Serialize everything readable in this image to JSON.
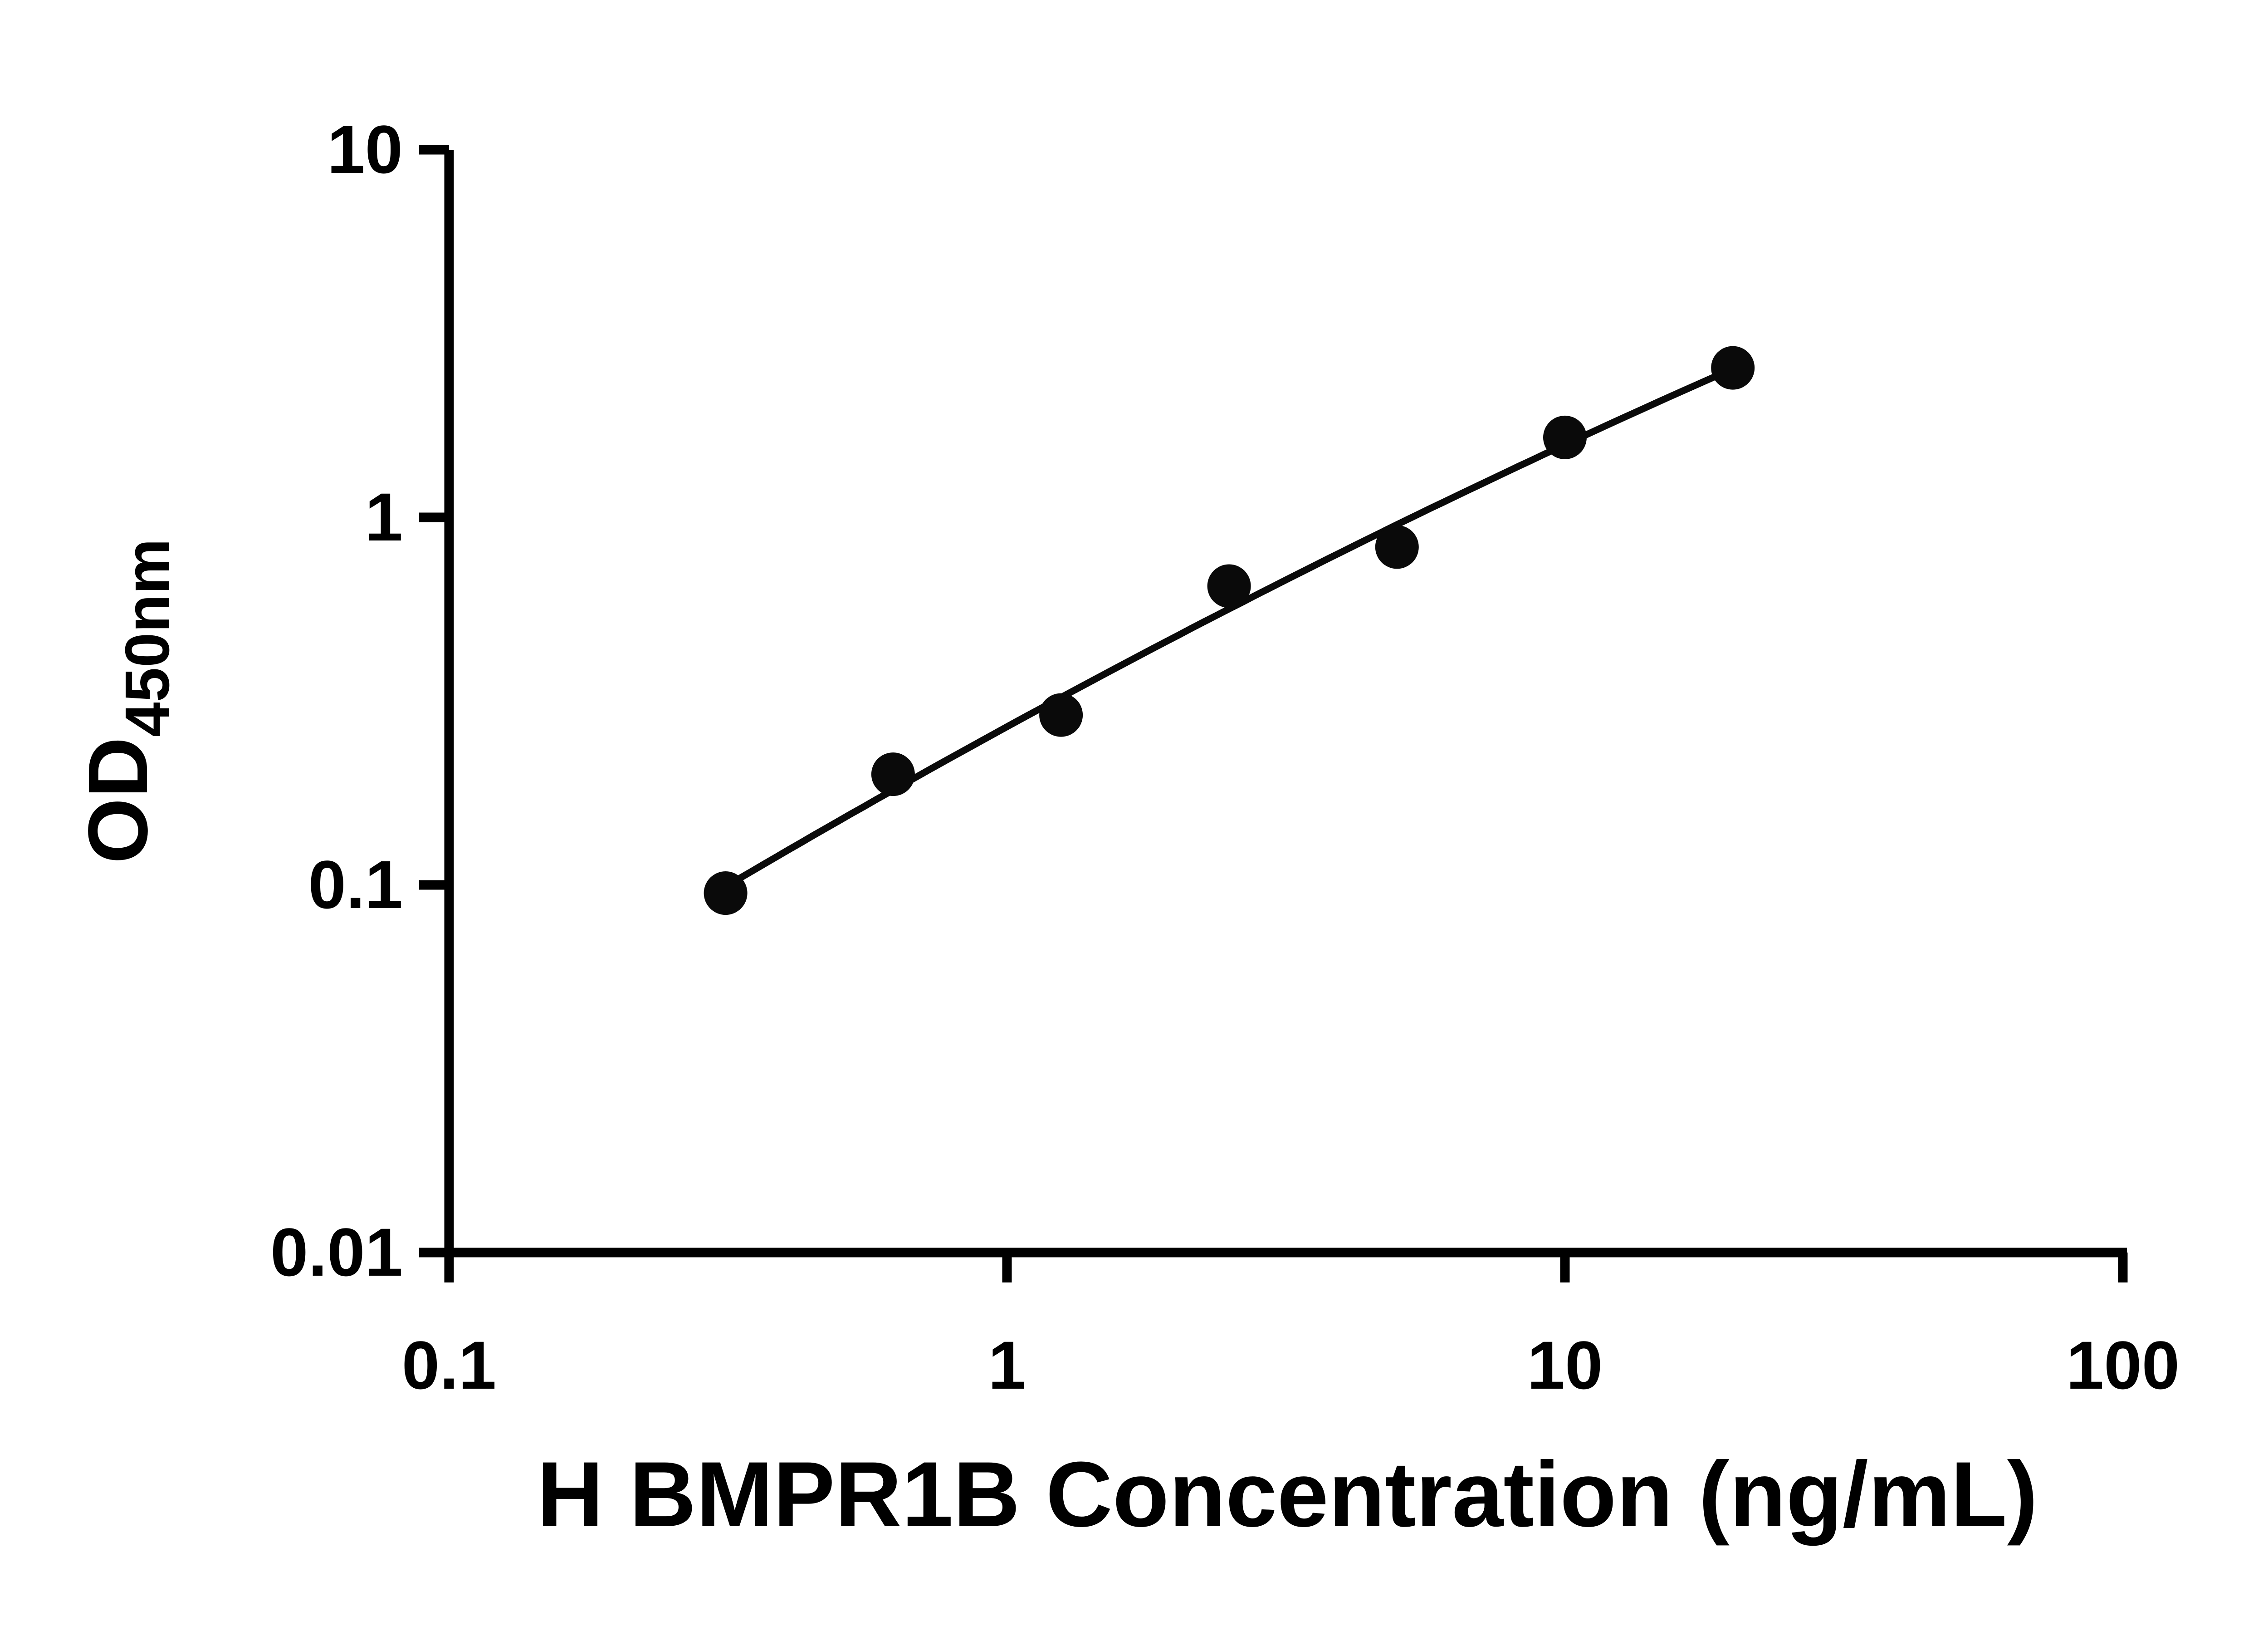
{
  "chart_data": {
    "type": "scatter",
    "title": "",
    "xlabel": "H BMPR1B Concentration (ng/mL)",
    "ylabel_main": "OD",
    "ylabel_sub": "450nm",
    "x": [
      0.313,
      0.625,
      1.25,
      2.5,
      5,
      10,
      20
    ],
    "y": [
      0.095,
      0.2,
      0.29,
      0.65,
      0.83,
      1.65,
      2.55
    ],
    "x_scale": "log",
    "y_scale": "log",
    "xlim": [
      0.1,
      100
    ],
    "ylim": [
      0.01,
      10
    ],
    "x_ticks": [
      0.1,
      1,
      10,
      100
    ],
    "x_tick_labels": [
      "0.1",
      "1",
      "10",
      "100"
    ],
    "y_ticks": [
      0.01,
      0.1,
      1,
      10
    ],
    "y_tick_labels": [
      "0.01",
      "0.1",
      "1",
      "10"
    ],
    "fit": "smooth curve through standards (log-log)",
    "grid": false,
    "legend": null,
    "marker_shape": "filled-circle"
  },
  "colors": {
    "background": "#ffffff",
    "axis": "#000000",
    "marker": "#0a0a0a",
    "line": "#0a0a0a"
  }
}
